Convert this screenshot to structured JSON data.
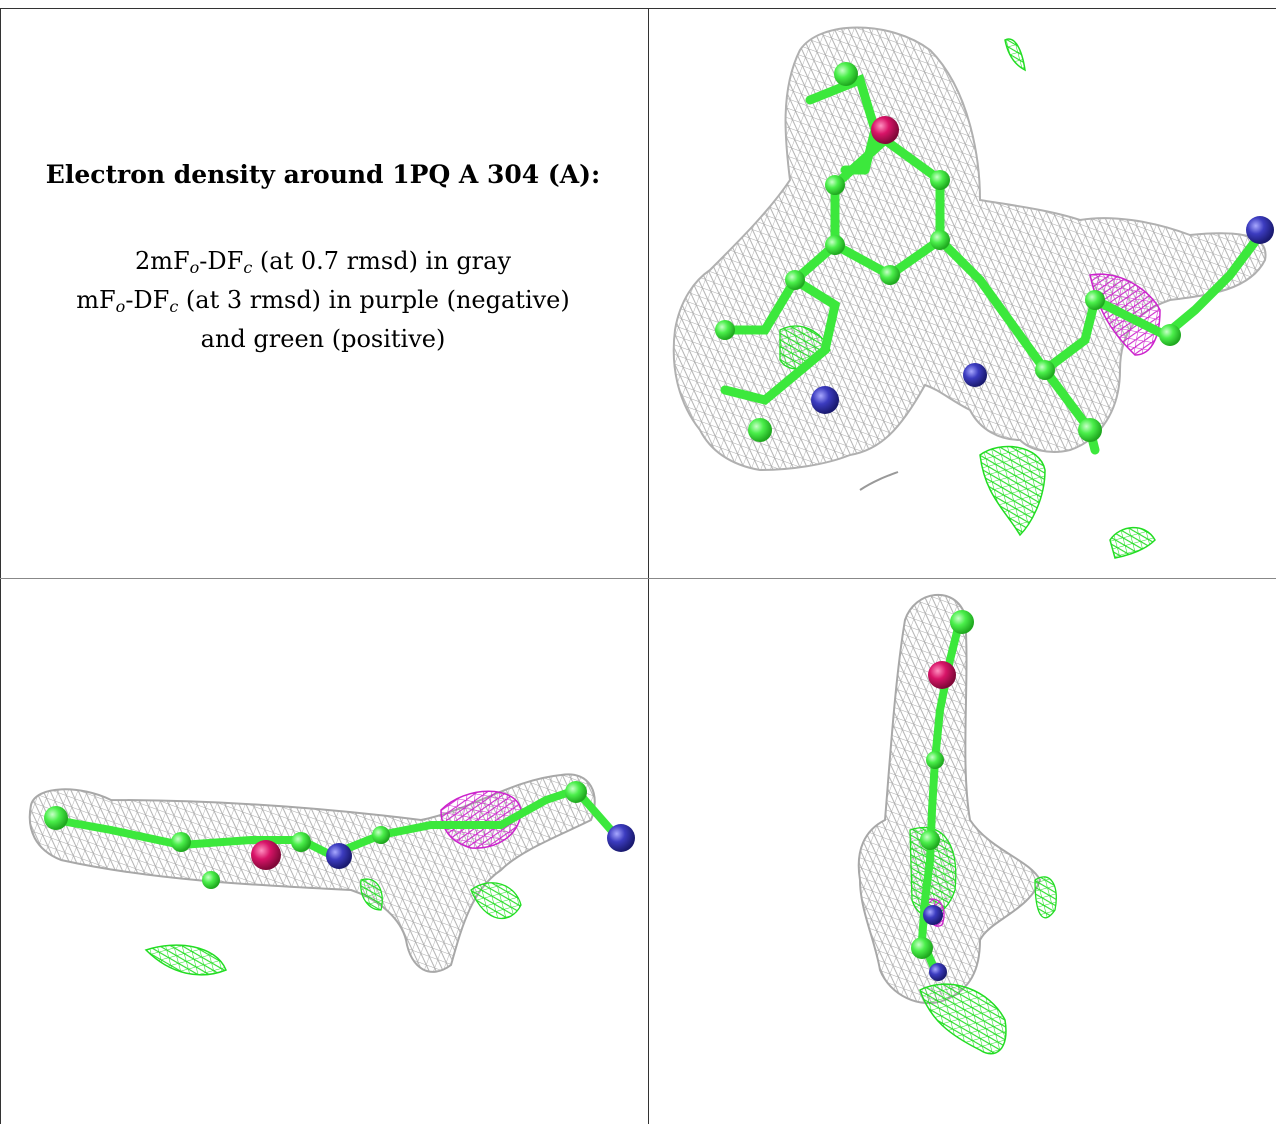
{
  "caption": {
    "title": "Electron density around 1PQ A 304 (A):",
    "line1_prefix": "2mF",
    "line1_sub_o": "o",
    "line1_mid": "-DF",
    "line1_sub_c": "c",
    "line1_suffix": " (at 0.7 rmsd) in gray",
    "line2_prefix": "mF",
    "line2_sub_o": "o",
    "line2_mid": "-DF",
    "line2_sub_c": "c",
    "line2_suffix": " (at 3 rmsd) in purple (negative)",
    "line3": "and green (positive)"
  },
  "colors": {
    "mesh_gray": "#b8b8b8",
    "mesh_green": "#22e022",
    "mesh_purple": "#cc22cc",
    "carbon": "#44ee44",
    "nitrogen": "#3a3ab0",
    "oxygen": "#d01060",
    "border": "#333333"
  },
  "panels": [
    {
      "name": "density-view-top",
      "view": "top"
    },
    {
      "name": "density-view-side",
      "view": "side"
    },
    {
      "name": "density-view-end",
      "view": "end"
    }
  ]
}
